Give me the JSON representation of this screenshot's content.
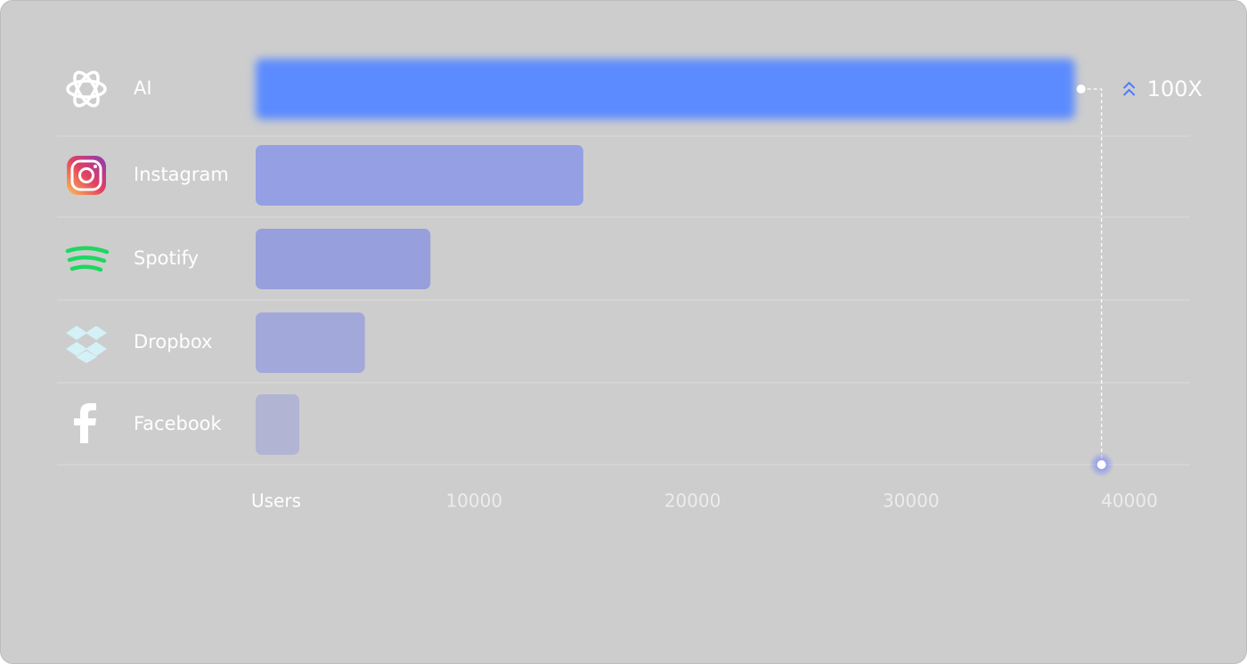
{
  "chart_data": {
    "type": "bar",
    "orientation": "horizontal",
    "categories": [
      "AI",
      "Instagram",
      "Spotify",
      "Dropbox",
      "Facebook"
    ],
    "values": [
      37500,
      15000,
      8000,
      5000,
      2000
    ],
    "colors": [
      "#5b8bff",
      "#949fe4",
      "#979fdc",
      "#a3a8da",
      "#b2b4d3"
    ],
    "xlabel": "Users",
    "xlim": [
      0,
      40000
    ],
    "xticks": [
      10000,
      20000,
      30000,
      40000
    ],
    "annotation": "100X"
  }
}
